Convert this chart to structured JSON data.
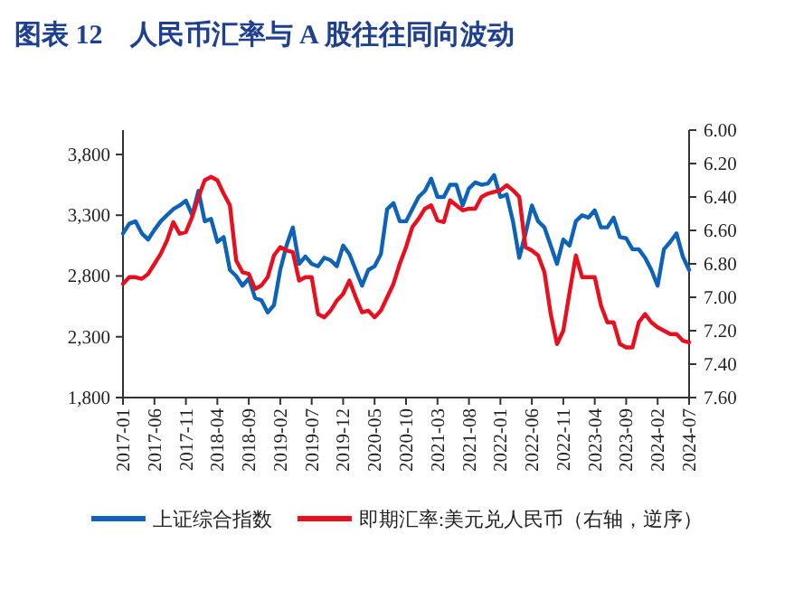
{
  "chart_data": {
    "type": "line",
    "title": "图表 12　人民币汇率与 A 股往往同向波动",
    "x": [
      "2017-01",
      "2017-02",
      "2017-03",
      "2017-04",
      "2017-05",
      "2017-06",
      "2017-07",
      "2017-08",
      "2017-09",
      "2017-10",
      "2017-11",
      "2017-12",
      "2018-01",
      "2018-02",
      "2018-03",
      "2018-04",
      "2018-05",
      "2018-06",
      "2018-07",
      "2018-08",
      "2018-09",
      "2018-10",
      "2018-11",
      "2018-12",
      "2019-01",
      "2019-02",
      "2019-03",
      "2019-04",
      "2019-05",
      "2019-06",
      "2019-07",
      "2019-08",
      "2019-09",
      "2019-10",
      "2019-11",
      "2019-12",
      "2020-01",
      "2020-02",
      "2020-03",
      "2020-04",
      "2020-05",
      "2020-06",
      "2020-07",
      "2020-08",
      "2020-09",
      "2020-10",
      "2020-11",
      "2020-12",
      "2021-01",
      "2021-02",
      "2021-03",
      "2021-04",
      "2021-05",
      "2021-06",
      "2021-07",
      "2021-08",
      "2021-09",
      "2021-10",
      "2021-11",
      "2021-12",
      "2022-01",
      "2022-02",
      "2022-03",
      "2022-04",
      "2022-05",
      "2022-06",
      "2022-07",
      "2022-08",
      "2022-09",
      "2022-10",
      "2022-11",
      "2022-12",
      "2023-01",
      "2023-02",
      "2023-03",
      "2023-04",
      "2023-05",
      "2023-06",
      "2023-07",
      "2023-08",
      "2023-09",
      "2023-10",
      "2023-11",
      "2023-12",
      "2024-01",
      "2024-02",
      "2024-03",
      "2024-04",
      "2024-05",
      "2024-06",
      "2024-07"
    ],
    "series": [
      {
        "name": "上证综合指数",
        "color": "#0e63b8",
        "values": [
          3150,
          3230,
          3250,
          3150,
          3100,
          3180,
          3250,
          3300,
          3350,
          3380,
          3420,
          3300,
          3500,
          3250,
          3270,
          3080,
          3120,
          2850,
          2800,
          2720,
          2780,
          2620,
          2600,
          2500,
          2560,
          2850,
          3050,
          3200,
          2900,
          2960,
          2900,
          2880,
          2950,
          2930,
          2880,
          3050,
          2980,
          2850,
          2720,
          2850,
          2880,
          2980,
          3350,
          3400,
          3250,
          3250,
          3350,
          3450,
          3500,
          3600,
          3450,
          3450,
          3550,
          3550,
          3380,
          3520,
          3570,
          3550,
          3560,
          3630,
          3450,
          3470,
          3250,
          2950,
          3150,
          3380,
          3250,
          3200,
          3050,
          2900,
          3100,
          3050,
          3250,
          3300,
          3280,
          3340,
          3200,
          3200,
          3280,
          3120,
          3110,
          3020,
          3020,
          2950,
          2850,
          2720,
          3020,
          3080,
          3150,
          2960,
          2850
        ]
      },
      {
        "name": "即期汇率:美元兑人民币（右轴，逆序）",
        "color": "#e8101e",
        "axis": "y2",
        "values": [
          6.92,
          6.88,
          6.88,
          6.89,
          6.86,
          6.8,
          6.74,
          6.66,
          6.55,
          6.62,
          6.61,
          6.52,
          6.4,
          6.3,
          6.28,
          6.3,
          6.38,
          6.45,
          6.78,
          6.85,
          6.86,
          6.95,
          6.93,
          6.88,
          6.75,
          6.7,
          6.72,
          6.73,
          6.9,
          6.88,
          6.88,
          7.1,
          7.12,
          7.08,
          7.02,
          6.98,
          6.9,
          7.0,
          7.09,
          7.08,
          7.12,
          7.08,
          7.0,
          6.92,
          6.8,
          6.7,
          6.58,
          6.53,
          6.47,
          6.45,
          6.54,
          6.55,
          6.42,
          6.45,
          6.48,
          6.47,
          6.47,
          6.4,
          6.38,
          6.37,
          6.36,
          6.33,
          6.36,
          6.4,
          6.7,
          6.72,
          6.75,
          6.85,
          7.1,
          7.28,
          7.2,
          6.97,
          6.75,
          6.88,
          6.88,
          6.88,
          7.05,
          7.15,
          7.15,
          7.28,
          7.3,
          7.3,
          7.15,
          7.1,
          7.15,
          7.18,
          7.2,
          7.22,
          7.22,
          7.26,
          7.27
        ]
      }
    ],
    "xlim": [
      "2017-01",
      "2024-07"
    ],
    "xticks": [
      {
        "value": "2017-01",
        "label": "2017-01"
      },
      {
        "value": "2017-06",
        "label": "2017-06"
      },
      {
        "value": "2017-11",
        "label": "2017-11"
      },
      {
        "value": "2018-04",
        "label": "2018-04"
      },
      {
        "value": "2018-09",
        "label": "2018-09"
      },
      {
        "value": "2019-02",
        "label": "2019-02"
      },
      {
        "value": "2019-07",
        "label": "2019-07"
      },
      {
        "value": "2019-12",
        "label": "2019-12"
      },
      {
        "value": "2020-05",
        "label": "2020-05"
      },
      {
        "value": "2020-10",
        "label": "2020-10"
      },
      {
        "value": "2021-03",
        "label": "2021-03"
      },
      {
        "value": "2021-08",
        "label": "2021-08"
      },
      {
        "value": "2022-01",
        "label": "2022-01"
      },
      {
        "value": "2022-06",
        "label": "2022-06"
      },
      {
        "value": "2022-11",
        "label": "2022-11"
      },
      {
        "value": "2023-04",
        "label": "2023-04"
      },
      {
        "value": "2023-09",
        "label": "2023-09"
      },
      {
        "value": "2024-02",
        "label": "2024-02"
      },
      {
        "value": "2024-07",
        "label": "2024-07"
      }
    ],
    "ylim": [
      1800,
      4000
    ],
    "yticks": [
      {
        "value": 1800,
        "label": "1,800"
      },
      {
        "value": 2300,
        "label": "2,300"
      },
      {
        "value": 2800,
        "label": "2,800"
      },
      {
        "value": 3300,
        "label": "3,300"
      },
      {
        "value": 3800,
        "label": "3,800"
      }
    ],
    "y2lim": [
      7.6,
      6.0
    ],
    "y2ticks": [
      {
        "value": 6.0,
        "label": "6.00"
      },
      {
        "value": 6.2,
        "label": "6.20"
      },
      {
        "value": 6.4,
        "label": "6.40"
      },
      {
        "value": 6.6,
        "label": "6.60"
      },
      {
        "value": 6.8,
        "label": "6.80"
      },
      {
        "value": 7.0,
        "label": "7.00"
      },
      {
        "value": 7.2,
        "label": "7.20"
      },
      {
        "value": 7.4,
        "label": "7.40"
      },
      {
        "value": 7.6,
        "label": "7.60"
      }
    ],
    "grid": false,
    "legend": "bottom"
  }
}
